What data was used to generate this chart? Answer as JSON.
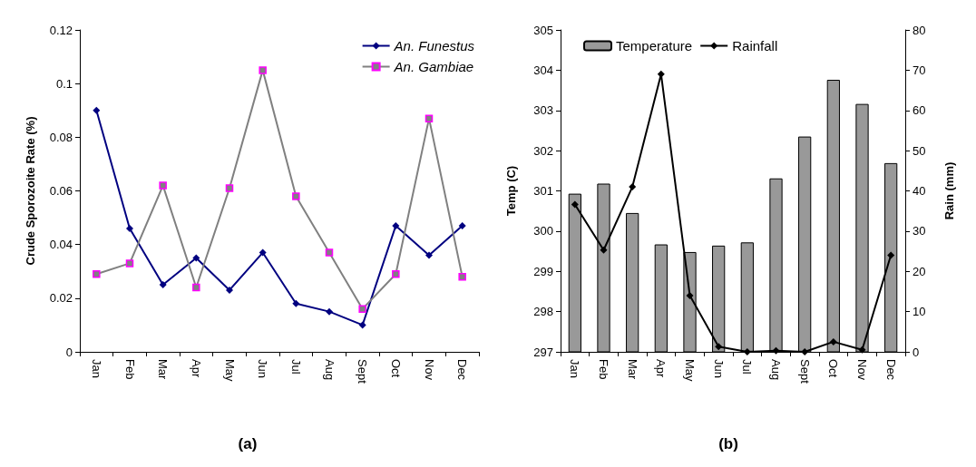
{
  "chart_data": [
    {
      "type": "line",
      "ylabel": "Crude Sporozoite Rate (%)",
      "annotations": [
        "(a)"
      ],
      "categories": [
        "Jan",
        "Feb",
        "Mar",
        "Apr",
        "May",
        "Jun",
        "Jul",
        "Aug",
        "Sept",
        "Oct",
        "Nov",
        "Dec"
      ],
      "ylim": [
        0,
        0.12
      ],
      "yticks": [
        0,
        0.02,
        0.04,
        0.06,
        0.08,
        0.1,
        0.12
      ],
      "grid": false,
      "legend": "top right",
      "series": [
        {
          "name": "An. Funestus",
          "color": "#000080",
          "marker": "diamond",
          "values": [
            0.09,
            0.046,
            0.025,
            0.035,
            0.023,
            0.037,
            0.018,
            0.015,
            0.01,
            0.047,
            0.036,
            0.047
          ]
        },
        {
          "name": "An. Gambiae",
          "color": "#808080",
          "marker": "square",
          "values": [
            0.029,
            0.033,
            0.062,
            0.024,
            0.061,
            0.105,
            0.058,
            0.037,
            0.016,
            0.029,
            0.087,
            0.028
          ]
        }
      ]
    },
    {
      "type": "bar",
      "ylabel": "Temp (C)",
      "y2label": "Rain (mm)",
      "annotations": [
        "(b)"
      ],
      "categories": [
        "Jan",
        "Feb",
        "Mar",
        "Apr",
        "May",
        "Jun",
        "Jul",
        "Aug",
        "Sept",
        "Oct",
        "Nov",
        "Dec"
      ],
      "ylim": [
        297,
        305
      ],
      "yticks": [
        297,
        298,
        299,
        300,
        301,
        302,
        303,
        304,
        305
      ],
      "y2lim": [
        0,
        80
      ],
      "y2ticks": [
        0,
        10,
        20,
        30,
        40,
        50,
        60,
        70,
        80
      ],
      "grid": false,
      "legend": "top left",
      "series": [
        {
          "name": "Temperature",
          "color": "#999999",
          "values": [
            300.93,
            301.18,
            300.45,
            299.67,
            299.48,
            299.64,
            299.72,
            301.31,
            302.35,
            303.76,
            303.16,
            301.69
          ]
        },
        {
          "name": "Rainfall",
          "type": "line",
          "axis": "y2",
          "marker": "diamond",
          "color": "#000000",
          "values": [
            36.6,
            25.3,
            41.0,
            69.0,
            14.0,
            1.3,
            0,
            0.3,
            0,
            2.5,
            0.5,
            24.0
          ]
        }
      ]
    }
  ]
}
